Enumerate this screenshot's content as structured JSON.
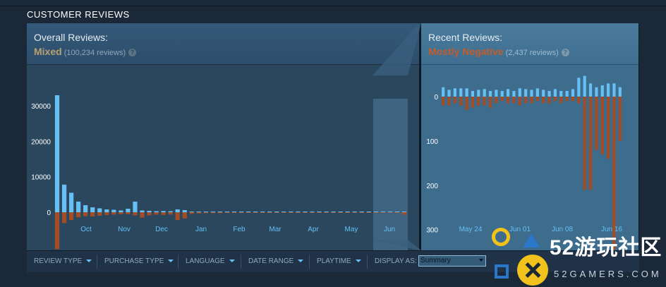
{
  "section_title": "CUSTOMER REVIEWS",
  "overall": {
    "label": "Overall Reviews:",
    "summary": "Mixed",
    "count": "(100,234 reviews)",
    "summary_color": "#b9a074"
  },
  "recent": {
    "label": "Recent Reviews:",
    "summary": "Mostly Negative",
    "count": "(2,437 reviews)",
    "summary_color": "#c35c2c"
  },
  "help_glyph": "?",
  "colors": {
    "positive": "#66c0f4",
    "negative": "#a34c25",
    "overall_bg": "#2a475e",
    "recent_bg": "#3d6c8d"
  },
  "filters": [
    {
      "label": "REVIEW TYPE"
    },
    {
      "label": "PURCHASE TYPE"
    },
    {
      "label": "LANGUAGE"
    },
    {
      "label": "DATE RANGE"
    },
    {
      "label": "PLAYTIME"
    }
  ],
  "display_as": {
    "label": "DISPLAY AS:",
    "selected": "Summary"
  },
  "watermark": {
    "text": "52游玩社区",
    "url": "52GAMERS.COM"
  },
  "chart_data": [
    {
      "type": "bar",
      "name": "overall-histogram",
      "y_ticks": [
        0,
        10000,
        20000,
        30000
      ],
      "x_tick_labels": [
        "Oct",
        "Nov",
        "Dec",
        "Jan",
        "Feb",
        "Mar",
        "Apr",
        "May",
        "Jun"
      ],
      "ylim_positive": 34000,
      "ylim_negative": 10000,
      "positive": [
        33000,
        7800,
        5500,
        3000,
        2000,
        1400,
        1100,
        800,
        700,
        500,
        1000,
        3000,
        500,
        400,
        300,
        350,
        300,
        800,
        600,
        150,
        120,
        100,
        100,
        100,
        80,
        80,
        80,
        70,
        60,
        60,
        60,
        50,
        50,
        50,
        50,
        50,
        40,
        40,
        40,
        40,
        40,
        40,
        40,
        40,
        40,
        40,
        40,
        40,
        40,
        40
      ],
      "negative": [
        9500,
        2800,
        2000,
        1300,
        1000,
        1100,
        900,
        700,
        600,
        500,
        500,
        800,
        1400,
        800,
        600,
        700,
        600,
        2000,
        1600,
        400,
        300,
        250,
        250,
        250,
        200,
        200,
        200,
        180,
        180,
        160,
        150,
        150,
        150,
        150,
        130,
        130,
        120,
        120,
        120,
        110,
        110,
        110,
        110,
        110,
        110,
        100,
        100,
        100,
        100,
        600
      ],
      "highlighted_range": "Jun"
    },
    {
      "type": "bar",
      "name": "recent-histogram",
      "y_ticks": [
        0,
        100,
        200,
        300
      ],
      "x_tick_labels": [
        "May 24",
        "Jun 01",
        "Jun 08",
        "Jun 16"
      ],
      "ylim_positive": 58,
      "ylim_negative": 345,
      "positive": [
        25,
        18,
        22,
        22,
        22,
        15,
        18,
        20,
        15,
        18,
        15,
        20,
        15,
        22,
        20,
        18,
        22,
        18,
        15,
        20,
        15,
        15,
        20,
        50,
        55,
        35,
        25,
        30,
        35,
        35,
        25
      ],
      "negative": [
        20,
        20,
        15,
        20,
        30,
        25,
        20,
        20,
        25,
        15,
        10,
        15,
        15,
        20,
        15,
        15,
        10,
        15,
        15,
        10,
        15,
        10,
        10,
        15,
        210,
        210,
        120,
        130,
        140,
        345,
        100
      ]
    }
  ]
}
